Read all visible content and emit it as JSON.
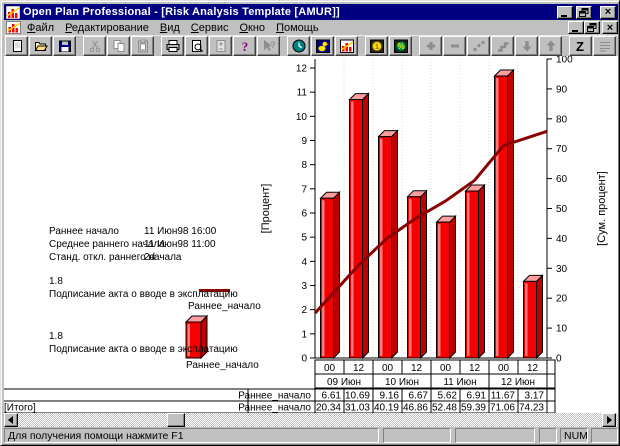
{
  "window": {
    "title": "Open Plan Professional - [Risk Analysis Template [AMUR]]"
  },
  "menu": {
    "items": [
      {
        "name": "file",
        "label": "Файл"
      },
      {
        "name": "edit",
        "label": "Редактирование"
      },
      {
        "name": "view",
        "label": "Вид"
      },
      {
        "name": "tools",
        "label": "Сервис"
      },
      {
        "name": "window",
        "label": "Окно"
      },
      {
        "name": "help",
        "label": "Помощь"
      }
    ]
  },
  "toolbar": {
    "groups": [
      {
        "buttons": [
          {
            "name": "new",
            "enabled": true
          },
          {
            "name": "open",
            "enabled": true
          },
          {
            "name": "save",
            "enabled": true
          }
        ]
      },
      {
        "buttons": [
          {
            "name": "cut",
            "enabled": false
          },
          {
            "name": "copy",
            "enabled": false
          },
          {
            "name": "paste",
            "enabled": false
          }
        ]
      },
      {
        "buttons": [
          {
            "name": "print",
            "enabled": true
          },
          {
            "name": "print-preview",
            "enabled": true
          },
          {
            "name": "page-adjust",
            "enabled": false
          },
          {
            "name": "help",
            "enabled": true
          },
          {
            "name": "context-help",
            "enabled": false
          }
        ]
      },
      {
        "buttons": [
          {
            "name": "clock",
            "enabled": true
          },
          {
            "name": "duck",
            "enabled": true
          },
          {
            "name": "histogram",
            "enabled": true
          }
        ]
      },
      {
        "buttons": [
          {
            "name": "coin",
            "enabled": true
          },
          {
            "name": "percent",
            "enabled": true
          }
        ]
      },
      {
        "buttons": [
          {
            "name": "add",
            "enabled": false
          },
          {
            "name": "remove",
            "enabled": false
          },
          {
            "name": "scatter",
            "enabled": false
          },
          {
            "name": "steps",
            "enabled": false
          },
          {
            "name": "arrow-down",
            "enabled": false
          },
          {
            "name": "arrow-up",
            "enabled": false
          }
        ]
      },
      {
        "buttons": [
          {
            "name": "sort-z",
            "enabled": true
          },
          {
            "name": "list",
            "enabled": false
          }
        ]
      },
      {
        "buttons": [
          {
            "name": "window-tile",
            "enabled": false
          },
          {
            "name": "window-cascade",
            "enabled": false
          }
        ]
      }
    ]
  },
  "info_panel": {
    "rows": [
      {
        "label": "Раннее начало",
        "value": "11 Июн98 16:00"
      },
      {
        "label": "Среднее раннего начала",
        "value": "11 Июн98 11:00"
      },
      {
        "label": "Станд. откл. раннего начала",
        "value": "2d"
      }
    ]
  },
  "legend": {
    "line_entry": {
      "code": "1.8",
      "desc": "Подписание акта о вводе в эксплатацию",
      "series": "Раннее_начало"
    },
    "bar_entry": {
      "code": "1.8",
      "desc": "Подписание акта о вводе в эксплатацию",
      "series": "Раннее_начало"
    }
  },
  "chart_data": {
    "type": "bar",
    "x_hours": [
      "00",
      "12",
      "00",
      "12",
      "00",
      "12",
      "00",
      "12"
    ],
    "date_groups": [
      "09 Июн",
      "10 Июн",
      "11 Июн",
      "12 Июн"
    ],
    "bar_series": {
      "name": "Раннее_начало",
      "values": [
        6.61,
        10.69,
        9.16,
        6.67,
        5.62,
        6.91,
        11.67,
        3.17
      ]
    },
    "line_series": {
      "name": "Раннее_начало",
      "values": [
        20.34,
        31.03,
        40.19,
        46.86,
        52.48,
        59.39,
        71.06,
        74.23
      ]
    },
    "left_axis": {
      "label": "[Процент]",
      "min": 0,
      "max": 12,
      "step": 1
    },
    "right_axis": {
      "label": "[Сум. процент]",
      "min": 0,
      "max": 100,
      "step": 10
    },
    "bar_color": "#f40000",
    "bar_top_color": "#ff9e9e",
    "bar_side_color": "#c00000",
    "bar_highlight_color": "#ff7a7a",
    "line_color": "#8b0000"
  },
  "table": {
    "rows": [
      {
        "label": "",
        "series": "Раннее_начало",
        "values": [
          "6.61",
          "10.69",
          "9.16",
          "6.67",
          "5.62",
          "6.91",
          "11.67",
          "3.17"
        ]
      },
      {
        "label": "[Итого]",
        "series": "Раннее_начало",
        "values": [
          "20.34",
          "31.03",
          "40.19",
          "46.86",
          "52.48",
          "59.39",
          "71.06",
          "74.23"
        ]
      }
    ]
  },
  "status_bar": {
    "message": "Для получения помощи нажмите F1",
    "num": "NUM"
  }
}
